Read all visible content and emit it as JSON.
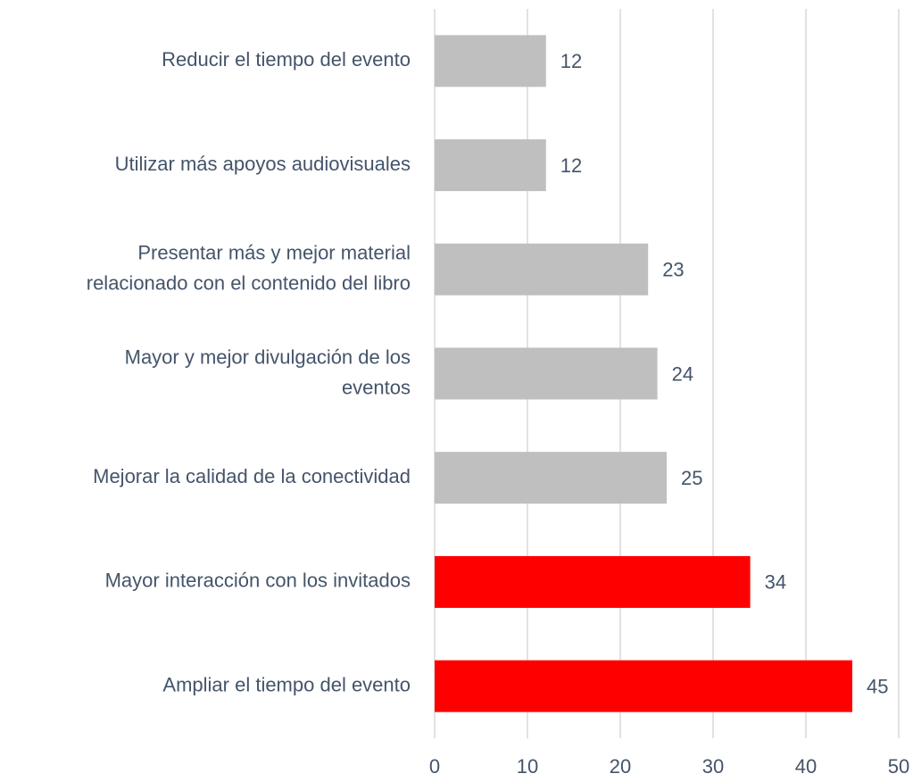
{
  "chart_data": {
    "type": "barh",
    "categories": [
      [
        "Reducir el tiempo del evento"
      ],
      [
        "Utilizar más apoyos audiovisuales"
      ],
      [
        "Presentar más y mejor material",
        "relacionado con el contenido del libro"
      ],
      [
        "Mayor y mejor divulgación de los",
        "eventos"
      ],
      [
        "Mejorar la calidad de la conectividad"
      ],
      [
        "Mayor interacción con los invitados"
      ],
      [
        "Ampliar el tiempo del evento"
      ]
    ],
    "values": [
      12,
      12,
      23,
      24,
      25,
      34,
      45
    ],
    "colors": [
      "#bfbfbf",
      "#bfbfbf",
      "#bfbfbf",
      "#bfbfbf",
      "#bfbfbf",
      "#ff0000",
      "#ff0000"
    ],
    "xlim": [
      0,
      50
    ],
    "xticks": [
      0,
      10,
      20,
      30,
      40,
      50
    ],
    "grid": true
  }
}
